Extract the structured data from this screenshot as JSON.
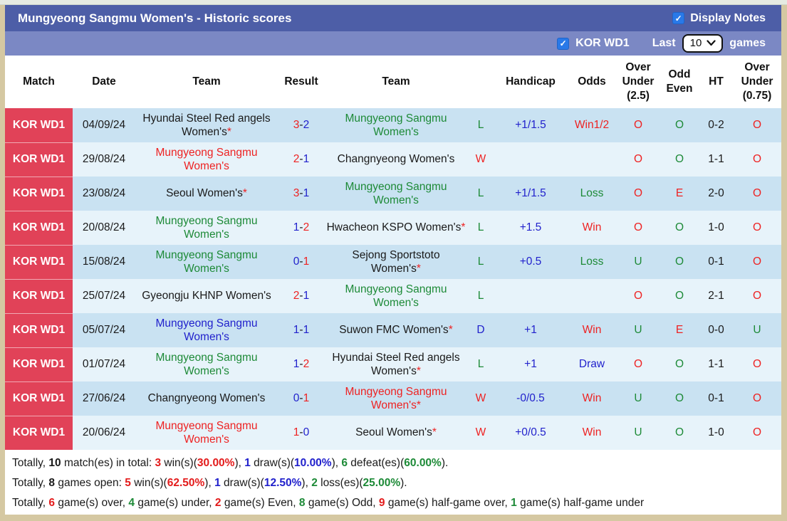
{
  "title_bar": {
    "title": "Mungyeong Sangmu Women's - Historic scores",
    "display_notes_label": "Display Notes",
    "display_notes_checked": true
  },
  "toolbar": {
    "league_label": "KOR WD1",
    "league_checked": true,
    "last_label": "Last",
    "selected_games": "10",
    "games_label": "games"
  },
  "colors": {
    "title_bar": "#4d5ea7",
    "toolbar": "#7b88c4",
    "match_cell_red": "#e14258",
    "row_dark": "#c9e2f2",
    "row_light": "#e7f3fa",
    "checkbox_blue": "#2979e8",
    "win_red": "#ee2222",
    "loss_green": "#1d8a37",
    "draw_blue": "#2121cc"
  },
  "table": {
    "columns": [
      "Match",
      "Date",
      "Team",
      "Result",
      "Team",
      "",
      "Handicap",
      "Odds",
      "Over Under (2.5)",
      "Odd Even",
      "HT",
      "Over Under (0.75)"
    ],
    "rows": [
      {
        "match": "KOR WD1",
        "date": "04/09/24",
        "home": {
          "name": "Hyundai Steel Red angels Women's",
          "star": true,
          "color": "black"
        },
        "score": {
          "home": "3",
          "home_color": "red",
          "away": "2",
          "away_color": "blue"
        },
        "away": {
          "name": "Mungyeong Sangmu Women's",
          "star": false,
          "color": "green"
        },
        "wdl": {
          "v": "L",
          "c": "green"
        },
        "handicap": "+1/1.5",
        "odds": {
          "v": "Win1/2",
          "c": "red"
        },
        "ou25": {
          "v": "O",
          "c": "red"
        },
        "odd_even": {
          "v": "O",
          "c": "green"
        },
        "ht": "0-2",
        "ou075": {
          "v": "O",
          "c": "red"
        }
      },
      {
        "match": "KOR WD1",
        "date": "29/08/24",
        "home": {
          "name": "Mungyeong Sangmu Women's",
          "star": false,
          "color": "red"
        },
        "score": {
          "home": "2",
          "home_color": "red",
          "away": "1",
          "away_color": "blue"
        },
        "away": {
          "name": "Changnyeong Women's",
          "star": false,
          "color": "black"
        },
        "wdl": {
          "v": "W",
          "c": "red"
        },
        "handicap": "",
        "odds": {
          "v": "",
          "c": "black"
        },
        "ou25": {
          "v": "O",
          "c": "red"
        },
        "odd_even": {
          "v": "O",
          "c": "green"
        },
        "ht": "1-1",
        "ou075": {
          "v": "O",
          "c": "red"
        }
      },
      {
        "match": "KOR WD1",
        "date": "23/08/24",
        "home": {
          "name": "Seoul Women's",
          "star": true,
          "color": "black"
        },
        "score": {
          "home": "3",
          "home_color": "red",
          "away": "1",
          "away_color": "blue"
        },
        "away": {
          "name": "Mungyeong Sangmu Women's",
          "star": false,
          "color": "green"
        },
        "wdl": {
          "v": "L",
          "c": "green"
        },
        "handicap": "+1/1.5",
        "odds": {
          "v": "Loss",
          "c": "green"
        },
        "ou25": {
          "v": "O",
          "c": "red"
        },
        "odd_even": {
          "v": "E",
          "c": "red"
        },
        "ht": "2-0",
        "ou075": {
          "v": "O",
          "c": "red"
        }
      },
      {
        "match": "KOR WD1",
        "date": "20/08/24",
        "home": {
          "name": "Mungyeong Sangmu Women's",
          "star": false,
          "color": "green"
        },
        "score": {
          "home": "1",
          "home_color": "blue",
          "away": "2",
          "away_color": "red"
        },
        "away": {
          "name": "Hwacheon KSPO Women's",
          "star": true,
          "color": "black"
        },
        "wdl": {
          "v": "L",
          "c": "green"
        },
        "handicap": "+1.5",
        "odds": {
          "v": "Win",
          "c": "red"
        },
        "ou25": {
          "v": "O",
          "c": "red"
        },
        "odd_even": {
          "v": "O",
          "c": "green"
        },
        "ht": "1-0",
        "ou075": {
          "v": "O",
          "c": "red"
        }
      },
      {
        "match": "KOR WD1",
        "date": "15/08/24",
        "home": {
          "name": "Mungyeong Sangmu Women's",
          "star": false,
          "color": "green"
        },
        "score": {
          "home": "0",
          "home_color": "blue",
          "away": "1",
          "away_color": "red"
        },
        "away": {
          "name": "Sejong Sportstoto Women's",
          "star": true,
          "color": "black"
        },
        "wdl": {
          "v": "L",
          "c": "green"
        },
        "handicap": "+0.5",
        "odds": {
          "v": "Loss",
          "c": "green"
        },
        "ou25": {
          "v": "U",
          "c": "green"
        },
        "odd_even": {
          "v": "O",
          "c": "green"
        },
        "ht": "0-1",
        "ou075": {
          "v": "O",
          "c": "red"
        }
      },
      {
        "match": "KOR WD1",
        "date": "25/07/24",
        "home": {
          "name": "Gyeongju KHNP Women's",
          "star": false,
          "color": "black"
        },
        "score": {
          "home": "2",
          "home_color": "red",
          "away": "1",
          "away_color": "blue"
        },
        "away": {
          "name": "Mungyeong Sangmu Women's",
          "star": false,
          "color": "green"
        },
        "wdl": {
          "v": "L",
          "c": "green"
        },
        "handicap": "",
        "odds": {
          "v": "",
          "c": "black"
        },
        "ou25": {
          "v": "O",
          "c": "red"
        },
        "odd_even": {
          "v": "O",
          "c": "green"
        },
        "ht": "2-1",
        "ou075": {
          "v": "O",
          "c": "red"
        }
      },
      {
        "match": "KOR WD1",
        "date": "05/07/24",
        "home": {
          "name": "Mungyeong Sangmu Women's",
          "star": false,
          "color": "blue"
        },
        "score": {
          "home": "1",
          "home_color": "blue",
          "away": "1",
          "away_color": "blue"
        },
        "away": {
          "name": "Suwon FMC Women's",
          "star": true,
          "color": "black"
        },
        "wdl": {
          "v": "D",
          "c": "blue"
        },
        "handicap": "+1",
        "odds": {
          "v": "Win",
          "c": "red"
        },
        "ou25": {
          "v": "U",
          "c": "green"
        },
        "odd_even": {
          "v": "E",
          "c": "red"
        },
        "ht": "0-0",
        "ou075": {
          "v": "U",
          "c": "green"
        }
      },
      {
        "match": "KOR WD1",
        "date": "01/07/24",
        "home": {
          "name": "Mungyeong Sangmu Women's",
          "star": false,
          "color": "green"
        },
        "score": {
          "home": "1",
          "home_color": "blue",
          "away": "2",
          "away_color": "red"
        },
        "away": {
          "name": "Hyundai Steel Red angels Women's",
          "star": true,
          "color": "black"
        },
        "wdl": {
          "v": "L",
          "c": "green"
        },
        "handicap": "+1",
        "odds": {
          "v": "Draw",
          "c": "blue"
        },
        "ou25": {
          "v": "O",
          "c": "red"
        },
        "odd_even": {
          "v": "O",
          "c": "green"
        },
        "ht": "1-1",
        "ou075": {
          "v": "O",
          "c": "red"
        }
      },
      {
        "match": "KOR WD1",
        "date": "27/06/24",
        "home": {
          "name": "Changnyeong Women's",
          "star": false,
          "color": "black"
        },
        "score": {
          "home": "0",
          "home_color": "blue",
          "away": "1",
          "away_color": "red"
        },
        "away": {
          "name": "Mungyeong Sangmu Women's",
          "star": true,
          "color": "red"
        },
        "wdl": {
          "v": "W",
          "c": "red"
        },
        "handicap": "-0/0.5",
        "odds": {
          "v": "Win",
          "c": "red"
        },
        "ou25": {
          "v": "U",
          "c": "green"
        },
        "odd_even": {
          "v": "O",
          "c": "green"
        },
        "ht": "0-1",
        "ou075": {
          "v": "O",
          "c": "red"
        }
      },
      {
        "match": "KOR WD1",
        "date": "20/06/24",
        "home": {
          "name": "Mungyeong Sangmu Women's",
          "star": false,
          "color": "red"
        },
        "score": {
          "home": "1",
          "home_color": "red",
          "away": "0",
          "away_color": "blue"
        },
        "away": {
          "name": "Seoul Women's",
          "star": true,
          "color": "black"
        },
        "wdl": {
          "v": "W",
          "c": "red"
        },
        "handicap": "+0/0.5",
        "odds": {
          "v": "Win",
          "c": "red"
        },
        "ou25": {
          "v": "U",
          "c": "green"
        },
        "odd_even": {
          "v": "O",
          "c": "green"
        },
        "ht": "1-0",
        "ou075": {
          "v": "O",
          "c": "red"
        }
      }
    ]
  },
  "footer": {
    "lines": [
      [
        {
          "t": "Totally, ",
          "c": "p"
        },
        {
          "t": "10",
          "c": "k"
        },
        {
          "t": " match(es) in total: ",
          "c": "p"
        },
        {
          "t": "3",
          "c": "r"
        },
        {
          "t": " win(s)(",
          "c": "p"
        },
        {
          "t": "30.00%",
          "c": "r"
        },
        {
          "t": "), ",
          "c": "p"
        },
        {
          "t": "1",
          "c": "b"
        },
        {
          "t": " draw(s)(",
          "c": "p"
        },
        {
          "t": "10.00%",
          "c": "b"
        },
        {
          "t": "), ",
          "c": "p"
        },
        {
          "t": "6",
          "c": "g"
        },
        {
          "t": " defeat(es)(",
          "c": "p"
        },
        {
          "t": "60.00%",
          "c": "g"
        },
        {
          "t": ").",
          "c": "p"
        }
      ],
      [
        {
          "t": "Totally, ",
          "c": "p"
        },
        {
          "t": "8",
          "c": "k"
        },
        {
          "t": " games open: ",
          "c": "p"
        },
        {
          "t": "5",
          "c": "r"
        },
        {
          "t": " win(s)(",
          "c": "p"
        },
        {
          "t": "62.50%",
          "c": "r"
        },
        {
          "t": "), ",
          "c": "p"
        },
        {
          "t": "1",
          "c": "b"
        },
        {
          "t": " draw(s)(",
          "c": "p"
        },
        {
          "t": "12.50%",
          "c": "b"
        },
        {
          "t": "), ",
          "c": "p"
        },
        {
          "t": "2",
          "c": "g"
        },
        {
          "t": " loss(es)(",
          "c": "p"
        },
        {
          "t": "25.00%",
          "c": "g"
        },
        {
          "t": ").",
          "c": "p"
        }
      ],
      [
        {
          "t": "Totally, ",
          "c": "p"
        },
        {
          "t": "6",
          "c": "r"
        },
        {
          "t": " game(s) over, ",
          "c": "p"
        },
        {
          "t": "4",
          "c": "g"
        },
        {
          "t": " game(s) under, ",
          "c": "p"
        },
        {
          "t": "2",
          "c": "r"
        },
        {
          "t": " game(s) Even, ",
          "c": "p"
        },
        {
          "t": "8",
          "c": "g"
        },
        {
          "t": " game(s) Odd, ",
          "c": "p"
        },
        {
          "t": "9",
          "c": "r"
        },
        {
          "t": " game(s) half-game over, ",
          "c": "p"
        },
        {
          "t": "1",
          "c": "g"
        },
        {
          "t": " game(s) half-game under",
          "c": "p"
        }
      ]
    ]
  }
}
